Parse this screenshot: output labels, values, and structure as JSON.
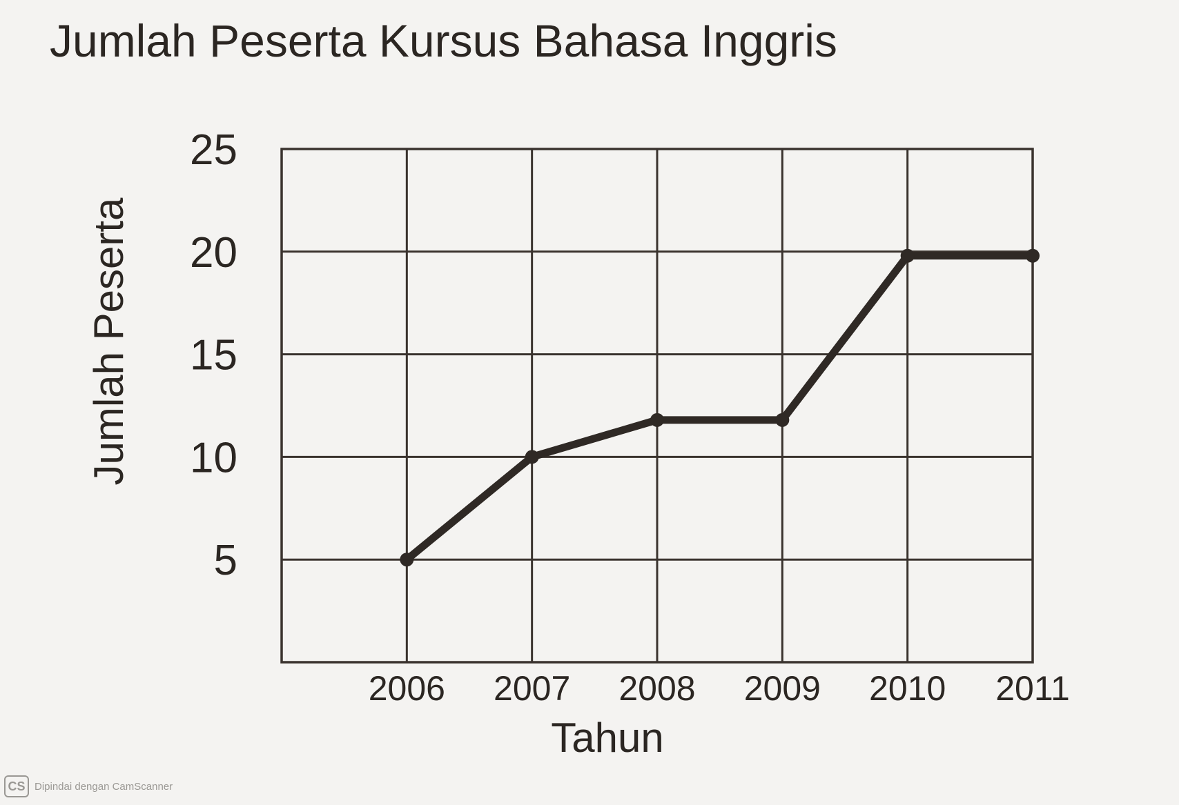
{
  "chart_data": {
    "type": "line",
    "title": "Jumlah Peserta Kursus Bahasa Inggris",
    "xlabel": "Tahun",
    "ylabel": "Jumlah Peserta",
    "categories": [
      "2006",
      "2007",
      "2008",
      "2009",
      "2010",
      "2011"
    ],
    "y_ticks": [
      "5",
      "10",
      "15",
      "20",
      "25"
    ],
    "ylim": [
      0,
      25
    ],
    "grid": true,
    "series": [
      {
        "values": [
          5,
          10,
          11.8,
          11.8,
          19.8,
          19.8
        ]
      }
    ]
  },
  "watermark": {
    "logo": "CS",
    "text": "Dipindai dengan CamScanner"
  },
  "colors": {
    "line": "#2f2925",
    "grid": "#3a332e",
    "background": "#f4f3f1"
  }
}
